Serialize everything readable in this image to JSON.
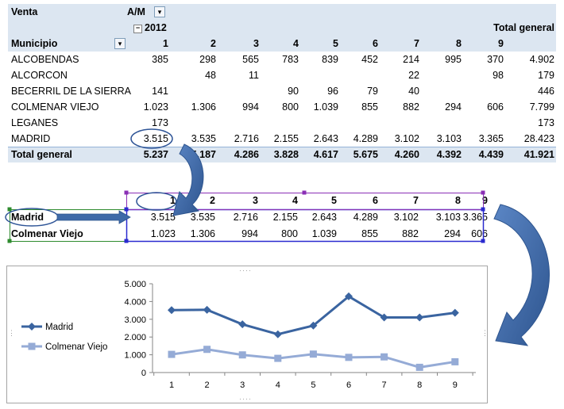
{
  "pivot": {
    "title": "Venta",
    "column_field": "A/M",
    "year": "2012",
    "row_field": "Municipio",
    "grand_total_label": "Total general",
    "months": [
      "1",
      "2",
      "3",
      "4",
      "5",
      "6",
      "7",
      "8",
      "9"
    ],
    "rows": [
      {
        "name": "ALCOBENDAS",
        "values": [
          "385",
          "298",
          "565",
          "783",
          "839",
          "452",
          "214",
          "995",
          "370"
        ],
        "total": "4.902"
      },
      {
        "name": "ALCORCON",
        "values": [
          "",
          "48",
          "11",
          "",
          "",
          "",
          "22",
          "",
          "98"
        ],
        "total": "179"
      },
      {
        "name": "BECERRIL DE LA SIERRA",
        "values": [
          "141",
          "",
          "",
          "90",
          "96",
          "79",
          "40",
          "",
          ""
        ],
        "total": "446"
      },
      {
        "name": "COLMENAR VIEJO",
        "values": [
          "1.023",
          "1.306",
          "994",
          "800",
          "1.039",
          "855",
          "882",
          "294",
          "606"
        ],
        "total": "7.799"
      },
      {
        "name": "LEGANES",
        "values": [
          "173",
          "",
          "",
          "",
          "",
          "",
          "",
          "",
          ""
        ],
        "total": "173"
      },
      {
        "name": "MADRID",
        "values": [
          "3.515",
          "3.535",
          "2.716",
          "2.155",
          "2.643",
          "4.289",
          "3.102",
          "3.103",
          "3.365"
        ],
        "total": "28.423"
      }
    ],
    "grand_total": {
      "label": "Total general",
      "values": [
        "5.237",
        "5.187",
        "4.286",
        "3.828",
        "4.617",
        "5.675",
        "4.260",
        "4.392",
        "4.439"
      ],
      "total": "41.921"
    }
  },
  "small_table": {
    "months": [
      "1",
      "2",
      "3",
      "4",
      "5",
      "6",
      "7",
      "8",
      "9"
    ],
    "rows": [
      {
        "name": "Madrid",
        "values": [
          "3.515",
          "3.535",
          "2.716",
          "2.155",
          "2.643",
          "4.289",
          "3.102",
          "3.103",
          "3.365"
        ]
      },
      {
        "name": "Colmenar Viejo",
        "values": [
          "1.023",
          "1.306",
          "994",
          "800",
          "1.039",
          "855",
          "882",
          "294",
          "606"
        ]
      }
    ]
  },
  "chart_data": {
    "type": "line",
    "categories": [
      "1",
      "2",
      "3",
      "4",
      "5",
      "6",
      "7",
      "8",
      "9"
    ],
    "series": [
      {
        "name": "Madrid",
        "values": [
          3515,
          3535,
          2716,
          2155,
          2643,
          4289,
          3102,
          3103,
          3365
        ],
        "color": "#3a64a0",
        "marker": "diamond"
      },
      {
        "name": "Colmenar Viejo",
        "values": [
          1023,
          1306,
          994,
          800,
          1039,
          855,
          882,
          294,
          606
        ],
        "color": "#95abd6",
        "marker": "square"
      }
    ],
    "yticks": [
      "0",
      "1.000",
      "2.000",
      "3.000",
      "4.000",
      "5.000"
    ],
    "ylim": [
      0,
      5000
    ],
    "grid": false,
    "legend": "left",
    "title": "",
    "xlabel": "",
    "ylabel": ""
  },
  "colors": {
    "header_band": "#dce6f1",
    "arrow": "#3e6aa8",
    "green_range": "#2e8b2e",
    "blue_range": "#2a2acf",
    "purple_range": "#8a2fb5"
  }
}
